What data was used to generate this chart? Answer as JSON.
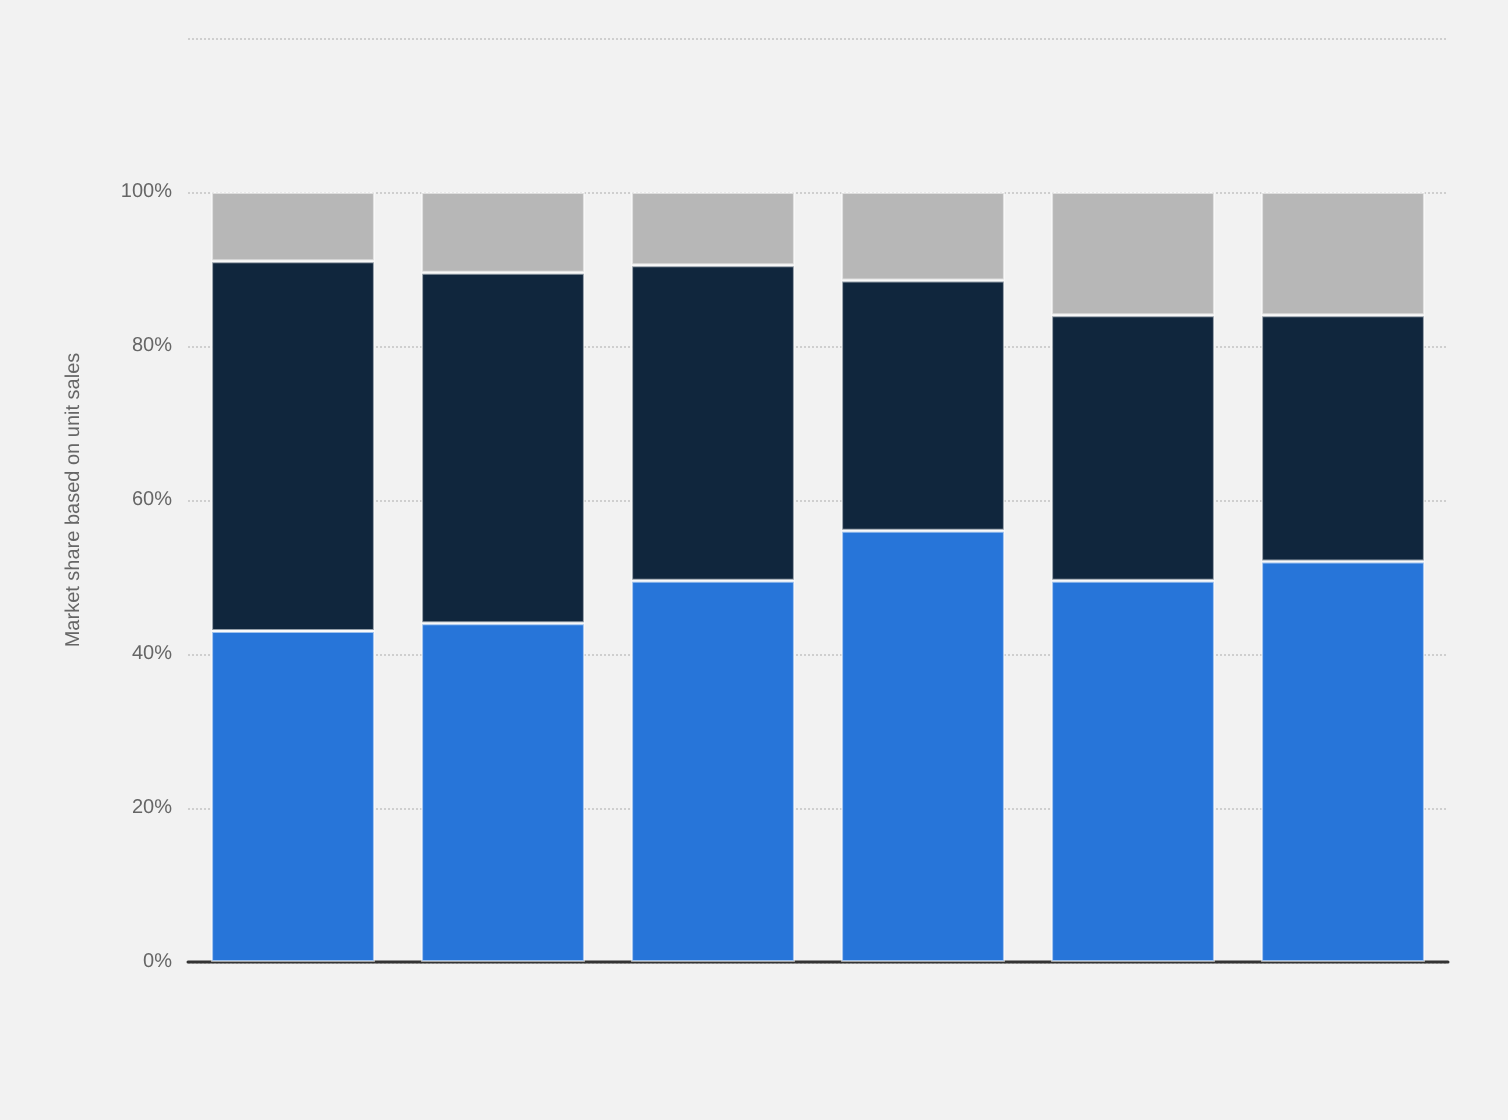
{
  "chart_data": {
    "type": "bar",
    "stacked": true,
    "ylabel": "Market share based on unit sales",
    "categories": [
      null,
      null,
      null,
      null,
      null,
      null
    ],
    "series": [
      {
        "color": "#2775d9",
        "values": [
          43,
          44,
          49.5,
          56,
          49.5,
          52
        ]
      },
      {
        "color": "#10263d",
        "values": [
          48,
          45.5,
          41,
          32.5,
          34.5,
          32
        ]
      },
      {
        "color": "#b7b7b7",
        "values": [
          9,
          10.5,
          9.5,
          11.5,
          16,
          16
        ]
      }
    ],
    "ylim": [
      0,
      120
    ],
    "yticks": [
      {
        "value": 0,
        "label": "0%"
      },
      {
        "value": 20,
        "label": "20%"
      },
      {
        "value": 40,
        "label": "40%"
      },
      {
        "value": 60,
        "label": "60%"
      },
      {
        "value": 80,
        "label": "80%"
      },
      {
        "value": 100,
        "label": "100%"
      },
      {
        "value": 120,
        "label": null
      }
    ],
    "grid": "y"
  }
}
